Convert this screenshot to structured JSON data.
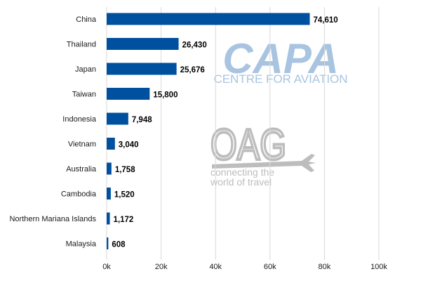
{
  "chart_data": {
    "type": "bar",
    "orientation": "horizontal",
    "categories": [
      "China",
      "Thailand",
      "Japan",
      "Taiwan",
      "Indonesia",
      "Vietnam",
      "Australia",
      "Cambodia",
      "Northern Mariana Islands",
      "Malaysia"
    ],
    "values": [
      74610,
      26430,
      25676,
      15800,
      7948,
      3040,
      1758,
      1520,
      1172,
      608
    ],
    "data_labels": [
      "74,610",
      "26,430",
      "25,676",
      "15,800",
      "7,948",
      "3,040",
      "1,758",
      "1,520",
      "1,172",
      "608"
    ],
    "xlim": [
      0,
      100000
    ],
    "x_ticks": [
      0,
      20000,
      40000,
      60000,
      80000,
      100000
    ],
    "x_tick_labels": [
      "0k",
      "20k",
      "40k",
      "60k",
      "80k",
      "100k"
    ],
    "title": "",
    "xlabel": "",
    "ylabel": "",
    "grid": "vertical",
    "legend": "none",
    "bar_color": "#0050a0"
  },
  "watermarks": {
    "capa_logo": "CAPA",
    "capa_sub": "CENTRE FOR AVIATION",
    "oag_logo": "OAG",
    "oag_tagline_1": "connecting the",
    "oag_tagline_2": "world of travel",
    "capa_color": "#a9c4e0",
    "oag_color": "#bdbdbd"
  }
}
